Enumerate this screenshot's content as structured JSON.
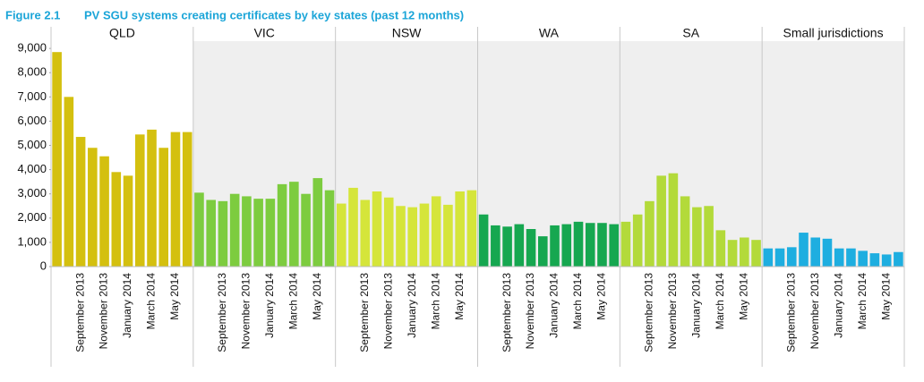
{
  "chart_data": {
    "type": "bar",
    "figure": "Figure 2.1",
    "title": "PV SGU systems creating certificates by key states (past 12 months)",
    "categories": [
      null,
      null,
      "September 2013",
      null,
      "November 2013",
      null,
      "January 2014",
      null,
      "March 2014",
      null,
      "May 2014",
      null
    ],
    "ylim": [
      0,
      9300
    ],
    "yticks": [
      0,
      {
        "value": 1000,
        "label": "1,000"
      },
      {
        "value": 2000,
        "label": "2,000"
      },
      {
        "value": 3000,
        "label": "3,000"
      },
      {
        "value": 4000,
        "label": "4,000"
      },
      {
        "value": 5000,
        "label": "5,000"
      },
      {
        "value": 6000,
        "label": "6,000"
      },
      {
        "value": 7000,
        "label": "7,000"
      },
      {
        "value": 8000,
        "label": "8,000"
      },
      {
        "value": 9000,
        "label": "9,000"
      }
    ],
    "series": [
      {
        "name": "QLD",
        "color": "#d4c00f",
        "values": [
          8850,
          7000,
          5350,
          4900,
          4550,
          3900,
          3750,
          5450,
          5650,
          4900,
          5550,
          5550
        ]
      },
      {
        "name": "VIC",
        "color": "#7dcc3f",
        "values": [
          3050,
          2750,
          2700,
          3000,
          2900,
          2800,
          2800,
          3400,
          3500,
          3000,
          3650,
          3150
        ]
      },
      {
        "name": "NSW",
        "color": "#d5e53a",
        "values": [
          2600,
          3250,
          2750,
          3100,
          2850,
          2500,
          2450,
          2600,
          2900,
          2550,
          3100,
          3150
        ]
      },
      {
        "name": "WA",
        "color": "#16a750",
        "values": [
          2150,
          1700,
          1650,
          1750,
          1550,
          1250,
          1700,
          1750,
          1850,
          1800,
          1800,
          1750
        ]
      },
      {
        "name": "SA",
        "color": "#b3da3a",
        "values": [
          1850,
          2150,
          2700,
          3750,
          3850,
          2900,
          2450,
          2500,
          1500,
          1100,
          1200,
          1100
        ]
      },
      {
        "name": "Small jurisdictions",
        "color": "#1eaee0",
        "values": [
          750,
          750,
          800,
          1400,
          1200,
          1150,
          750,
          750,
          650,
          550,
          500,
          600
        ]
      }
    ]
  }
}
